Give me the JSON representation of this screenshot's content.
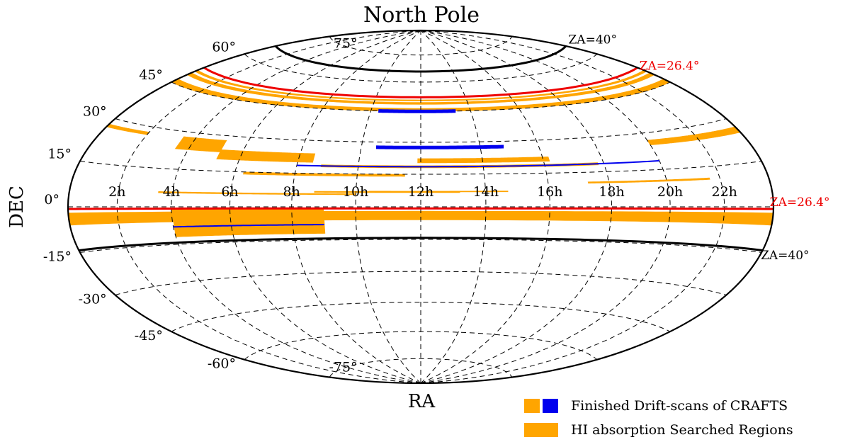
{
  "chart_data": {
    "type": "scatter",
    "projection": "aitoff-hammer",
    "title": "North Pole",
    "xlabel": "RA",
    "ylabel": "DEC",
    "ra_ticks": [
      "2h",
      "4h",
      "6h",
      "8h",
      "10h",
      "12h",
      "14h",
      "16h",
      "18h",
      "20h",
      "22h"
    ],
    "dec_ticks": [
      {
        "dec": 75,
        "label": "75°"
      },
      {
        "dec": 60,
        "label": "60°"
      },
      {
        "dec": 45,
        "label": "45°"
      },
      {
        "dec": 30,
        "label": "30°"
      },
      {
        "dec": 15,
        "label": "15°"
      },
      {
        "dec": 0,
        "label": "0°"
      },
      {
        "dec": -15,
        "label": "-15°"
      },
      {
        "dec": -30,
        "label": "-30°"
      },
      {
        "dec": -45,
        "label": "-45°"
      },
      {
        "dec": -60,
        "label": "-60°"
      },
      {
        "dec": -75,
        "label": "-75°"
      }
    ],
    "grid": true,
    "boundary_lines": [
      {
        "label": "ZA=40°",
        "color": "#000000",
        "dec_north": 65.7,
        "dec_south": -14.3
      },
      {
        "label": "ZA=26.4°",
        "color": "#EE0000",
        "dec_north": 52.1,
        "dec_south": -0.7
      }
    ],
    "regions": [
      {
        "category": "searched",
        "ra": [
          0,
          24
        ],
        "dec": [
          -6,
          -2
        ]
      },
      {
        "category": "searched",
        "ra": [
          4,
          9
        ],
        "dec": [
          -12,
          -0.5
        ]
      },
      {
        "category": "searched",
        "ra": [
          3.5,
          5.2
        ],
        "dec": [
          23,
          28
        ]
      },
      {
        "category": "searched",
        "ra": [
          5.2,
          8.5
        ],
        "dec": [
          20,
          24
        ]
      },
      {
        "category": "searched",
        "ra": [
          6.3,
          11.5
        ],
        "dec": [
          14,
          15
        ]
      },
      {
        "category": "searched",
        "ra": [
          8.8,
          17.8
        ],
        "dec": [
          18,
          19
        ]
      },
      {
        "category": "searched",
        "ra": [
          11.9,
          16.2
        ],
        "dec": [
          20.3,
          22.3
        ]
      },
      {
        "category": "searched",
        "ra": [
          8.7,
          13.2
        ],
        "dec": [
          6.5,
          7
        ]
      },
      {
        "category": "searched",
        "ra": [
          10.4,
          14.7
        ],
        "dec": [
          6.8,
          7.2
        ]
      },
      {
        "category": "searched",
        "ra": [
          3.5,
          10
        ],
        "dec": [
          5.5,
          6
        ]
      },
      {
        "category": "searched",
        "ra": [
          17.3,
          21.6
        ],
        "dec": [
          10.2,
          10.8
        ]
      },
      {
        "category": "searched",
        "ra": [
          20,
          24
        ],
        "dec": [
          25,
          27
        ]
      },
      {
        "category": "searched",
        "ra": [
          0,
          2
        ],
        "dec": [
          27,
          28
        ]
      },
      {
        "category": "searched",
        "ra": [
          0,
          24
        ],
        "dec": [
          45,
          46.5
        ]
      },
      {
        "category": "searched",
        "ra": [
          0,
          24
        ],
        "dec": [
          48.5,
          49.5
        ]
      },
      {
        "category": "searched",
        "ra": [
          0,
          24
        ],
        "dec": [
          50.2,
          50.8
        ]
      }
    ],
    "drift_scans": [
      {
        "color": "#0000EE",
        "ra": [
          4,
          9
        ],
        "dec": -8
      },
      {
        "color": "#0000EE",
        "ra": [
          8,
          20
        ],
        "dec": 18.5
      },
      {
        "color": "#0000EE",
        "ra": [
          10.5,
          14.8
        ],
        "dec": 27.5
      },
      {
        "color": "#0000EE",
        "ra": [
          10.3,
          13.4
        ],
        "dec": 45
      }
    ],
    "legend": [
      {
        "label": "Finished Drift-scans of CRAFTS",
        "colors": [
          "#FFA500",
          "#0000EE"
        ]
      },
      {
        "label": "HI absorption Searched Regions",
        "colors": [
          "#FFA500"
        ]
      }
    ]
  }
}
